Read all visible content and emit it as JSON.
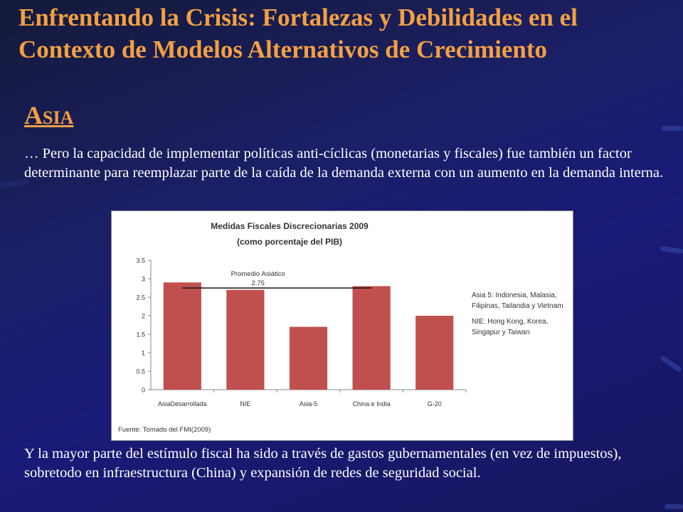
{
  "slide": {
    "title": "Enfrentando la Crisis: Fortalezas y Debilidades en el Contexto de Modelos Alternativos de Crecimiento",
    "subtitle_initial": "A",
    "subtitle_rest": "SIA",
    "intro_text": "… Pero la capacidad de implementar políticas anti-cíclicas (monetarias y fiscales) fue también un factor determinante para reemplazar parte de la caída de la demanda externa con un aumento en la demanda interna.",
    "outro_text": "Y la mayor parte del estímulo fiscal ha sido a través de gastos gubernamentales (en vez de impuestos), sobretodo en infraestructura (China) y expansión de redes de seguridad social.",
    "colors": {
      "background": "#1a1a78",
      "title": "#f3a042",
      "body_text": "#ffffff",
      "bar": "#c0504d"
    }
  },
  "chart_data": {
    "type": "bar",
    "title": "Medidas Fiscales Discrecionarias 2009",
    "subtitle": "(como porcentaje del PIB)",
    "categories": [
      "AsiaDesarrollada",
      "NIE",
      "Asia-5",
      "China e India",
      "G-20"
    ],
    "values": [
      2.9,
      2.7,
      1.7,
      2.8,
      2.0
    ],
    "ylim": [
      0,
      3.5
    ],
    "yticks": [
      "0",
      "0.5",
      "1",
      "1.5",
      "2",
      "2.5",
      "3",
      "3.5"
    ],
    "grid": false,
    "reference_line": {
      "label": "Promedio Asiático",
      "value_label": "2.75",
      "value": 2.75
    },
    "notes": [
      "Asia 5: Indonesia, Malasia, Filipinas, Tailandia y Vietnam",
      "NIE: Hong Kong, Korea, Singapur y Taiwan"
    ],
    "source": "Fuente: Tomado del FMI(2009)"
  }
}
